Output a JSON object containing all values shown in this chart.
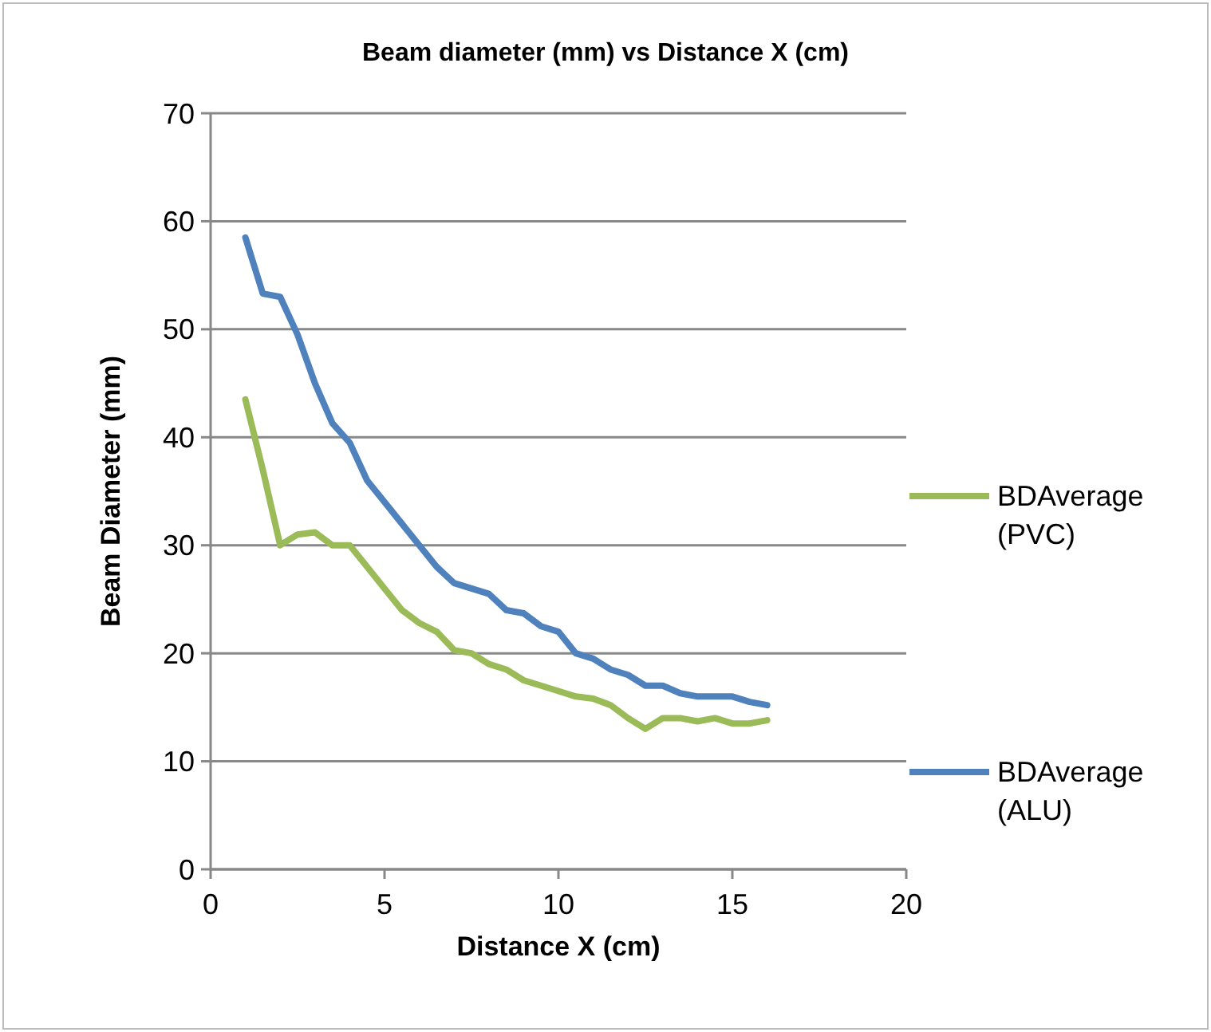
{
  "chart_data": {
    "type": "line",
    "title": "Beam diameter (mm) vs Distance X (cm)",
    "xlabel": "Distance X (cm)",
    "ylabel": "Beam Diameter (mm)",
    "x": [
      1,
      1.5,
      2,
      2.5,
      3,
      3.5,
      4,
      4.5,
      5,
      5.5,
      6,
      6.5,
      7,
      7.5,
      8,
      8.5,
      9,
      9.5,
      10,
      10.5,
      11,
      11.5,
      12,
      12.5,
      13,
      13.5,
      14,
      14.5,
      15,
      15.5,
      16
    ],
    "series": [
      {
        "name": "BDAverage (PVC)",
        "color": "#9bbb59",
        "values": [
          43.5,
          37,
          30,
          31,
          31.2,
          30,
          30,
          28,
          26,
          24,
          22.8,
          22,
          20.3,
          20,
          19,
          18.5,
          17.5,
          17,
          16.5,
          16,
          15.8,
          15.2,
          14,
          13,
          14,
          14,
          13.7,
          14,
          13.5,
          13.5,
          13.8
        ]
      },
      {
        "name": "BDAverage (ALU)",
        "color": "#4f81bd",
        "values": [
          58.5,
          53.3,
          53,
          49.5,
          45,
          41.3,
          39.5,
          36,
          34,
          32,
          30,
          28,
          26.5,
          26,
          25.5,
          24,
          23.7,
          22.5,
          22,
          20,
          19.5,
          18.5,
          18,
          17,
          17,
          16.3,
          16,
          16,
          16,
          15.5,
          15.2
        ]
      }
    ],
    "xlim": [
      0,
      20
    ],
    "xticks": [
      0,
      5,
      10,
      15,
      20
    ],
    "ylim": [
      0,
      70
    ],
    "yticks": [
      0,
      10,
      20,
      30,
      40,
      50,
      60,
      70
    ],
    "grid": "y",
    "legend": "right",
    "marker": "none",
    "line_style": "solid"
  }
}
